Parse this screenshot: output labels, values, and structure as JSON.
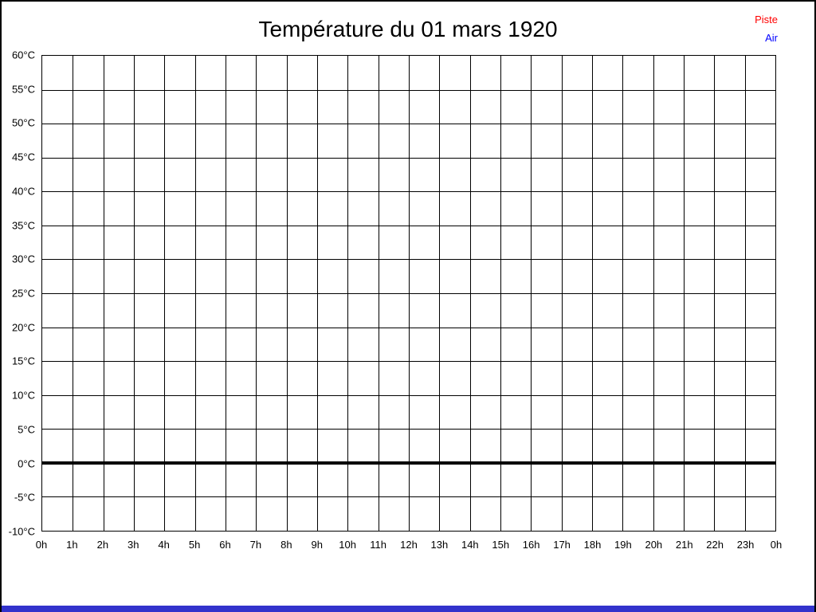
{
  "page": {
    "background": "#ffffff",
    "frame_color": "#000000",
    "bottom_bar_color": "#3232cc"
  },
  "header": {
    "title": "Température du 01 mars 1920"
  },
  "legend": {
    "position": "top-right",
    "items": [
      {
        "label": "Piste",
        "color": "#ff0000"
      },
      {
        "label": "Air",
        "color": "#0000ff"
      }
    ]
  },
  "chart_data": {
    "type": "line",
    "title": "Température du 01 mars 1920",
    "xlabel": "",
    "ylabel": "",
    "grid": true,
    "grid_color": "#000000",
    "x_axis": {
      "ticks": [
        "0h",
        "1h",
        "2h",
        "3h",
        "4h",
        "5h",
        "6h",
        "7h",
        "8h",
        "9h",
        "10h",
        "11h",
        "12h",
        "13h",
        "14h",
        "15h",
        "16h",
        "17h",
        "18h",
        "19h",
        "20h",
        "21h",
        "22h",
        "23h",
        "0h"
      ],
      "min": 0,
      "max": 24,
      "step_hours": 1
    },
    "y_axis": {
      "ticks": [
        "60°C",
        "55°C",
        "50°C",
        "45°C",
        "40°C",
        "35°C",
        "30°C",
        "25°C",
        "20°C",
        "15°C",
        "10°C",
        "5°C",
        "0°C",
        "-5°C",
        "-10°C"
      ],
      "min": -10,
      "max": 60,
      "step": 5,
      "unit": "°C"
    },
    "zero_line": {
      "value": 0,
      "thickness_px": 4,
      "color": "#000000"
    },
    "series": [
      {
        "name": "Piste",
        "color": "#ff0000",
        "values": []
      },
      {
        "name": "Air",
        "color": "#0000ff",
        "values": []
      }
    ],
    "note": "empty plot - no data points drawn for this date"
  }
}
